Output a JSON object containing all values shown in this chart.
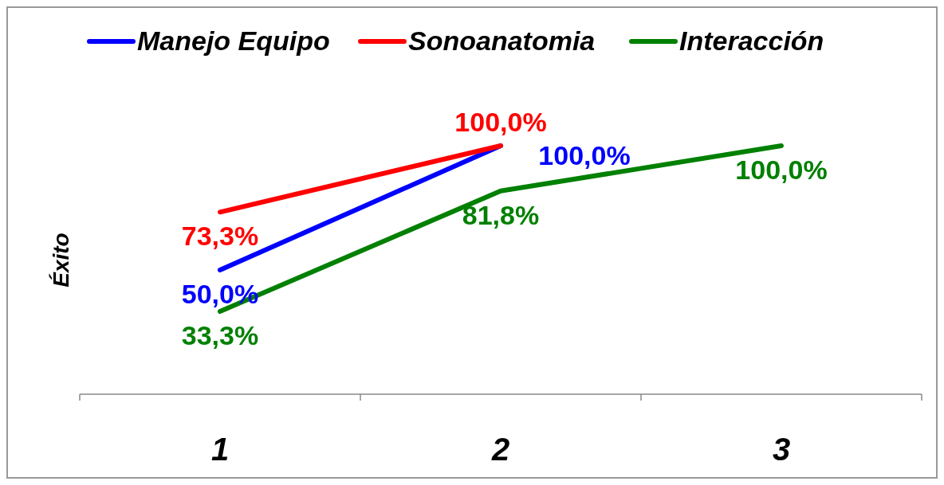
{
  "chart_data": {
    "type": "line",
    "ylabel": "Éxito",
    "categories": [
      "1",
      "2",
      "3"
    ],
    "legend": "top",
    "series": [
      {
        "name": "Manejo Equipo",
        "color": "#0000ff",
        "values": [
          50,
          100,
          null
        ],
        "value_labels": [
          "50,0%",
          "100,0%",
          null
        ]
      },
      {
        "name": "Sonoanatomia",
        "color": "#ff0000",
        "values": [
          73.3,
          100,
          null
        ],
        "value_labels": [
          "73,3%",
          "100,0%",
          null
        ]
      },
      {
        "name": "Interacción",
        "color": "#008000",
        "values": [
          33.3,
          81.8,
          100
        ],
        "value_labels": [
          "33,3%",
          "81,8%",
          "100,0%"
        ]
      }
    ]
  }
}
